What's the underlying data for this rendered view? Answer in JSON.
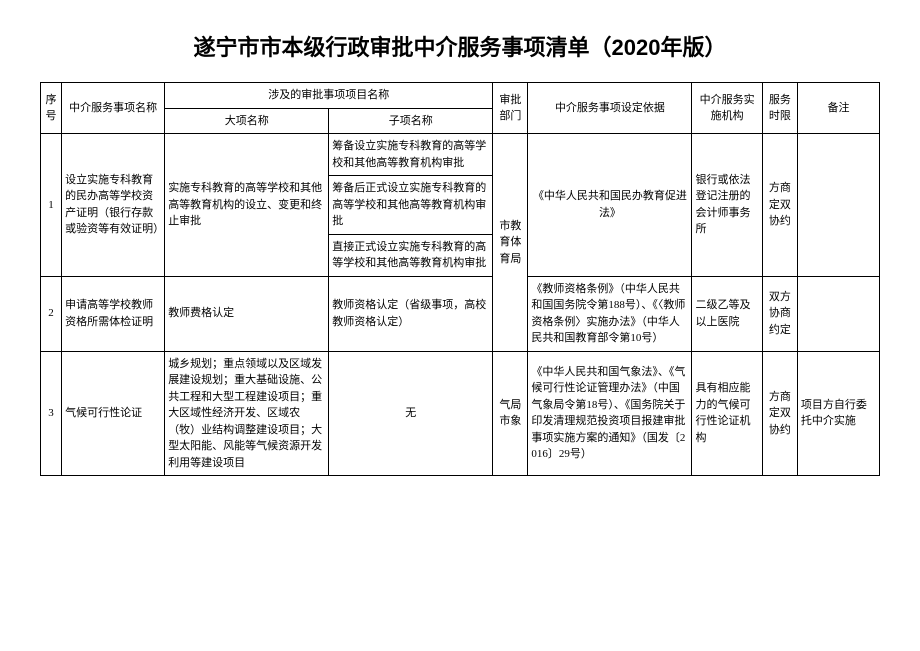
{
  "title": "遂宁市市本级行政审批中介服务事项清单（2020年版）",
  "headers": {
    "seq": "序号",
    "service_name": "中介服务事项名称",
    "involved": "涉及的审批事项项目名称",
    "major": "大项名称",
    "sub": "子项名称",
    "dept": "审批部门",
    "basis": "中介服务事项设定依据",
    "org": "中介服务实施机构",
    "time": "服务时限",
    "remark": "备注"
  },
  "rows": [
    {
      "seq": "1",
      "service_name": "设立实施专科教育的民办高等学校资产证明（银行存款或验资等有效证明）",
      "major": "实施专科教育的高等学校和其他高等教育机构的设立、变更和终止审批",
      "subs": [
        "筹备设立实施专科教育的高等学校和其他高等教育机构审批",
        "筹备后正式设立实施专科教育的高等学校和其他高等教育机构审批",
        "直接正式设立实施专科教育的高等学校和其他高等教育机构审批"
      ],
      "dept": "市教育体育局",
      "basis": "《中华人民共和国民办教育促进法》",
      "org": "银行或依法登记注册的会计师事务所",
      "time": "方商定双协约",
      "remark": ""
    },
    {
      "seq": "2",
      "service_name": "申请高等学校教师资格所需体检证明",
      "major": "教师费格认定",
      "sub": "教师资格认定（省级事项，高校教师资格认定）",
      "basis": "《教师资格条例》（中华人民共和国国务院令第188号）、《〈教师资格条例〉实施办法》（中华人民共和国教育部令第10号）",
      "org": "二级乙等及以上医院",
      "time": "双方协商约定",
      "remark": ""
    },
    {
      "seq": "3",
      "service_name": "气候可行性论证",
      "major": "城乡规划；重点领域以及区域发展建设规划；重大基础设施、公共工程和大型工程建设项目；重大区域性经济开发、区域农（牧）业结构调整建设项目；大型太阳能、风能等气候资源开发利用等建设项目",
      "sub": "无",
      "dept": "气局市象",
      "basis": "《中华人民共和国气象法》、《气候可行性论证管理办法》（中国气象局令第18号）、《国务院关于印发清理规范投资项目报建审批事项实施方案的通知》（国发〔2016〕29号）",
      "org": "具有相应能力的气候可行性论证机构",
      "time": "方商定双协约",
      "remark": "项目方自行委托中介实施"
    }
  ],
  "colors": {
    "text": "#000000",
    "border": "#000000",
    "background": "#ffffff"
  }
}
